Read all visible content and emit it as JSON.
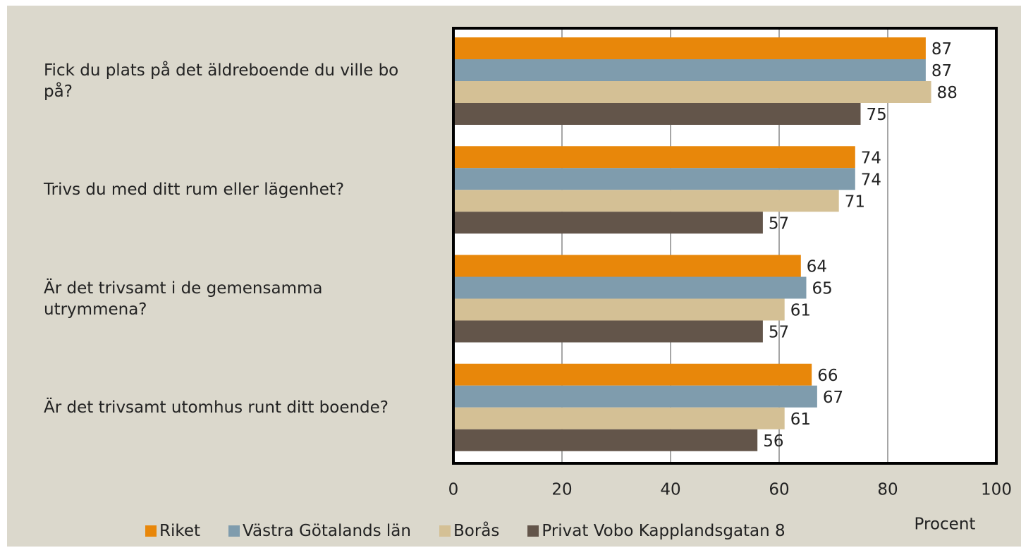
{
  "chart_data": {
    "type": "barh",
    "categories": [
      "Fick du plats på det äldreboende du ville bo på?",
      "Trivs du med ditt rum eller lägenhet?",
      "Är det trivsamt i de gemensamma utrymmena?",
      "Är det trivsamt utomhus runt ditt boende?"
    ],
    "series": [
      {
        "name": "Riket",
        "color": "#e8870a",
        "values": [
          87,
          74,
          64,
          66
        ]
      },
      {
        "name": "Västra Götalands län",
        "color": "#7f9cad",
        "values": [
          87,
          74,
          65,
          67
        ]
      },
      {
        "name": "Borås",
        "color": "#d4c095",
        "values": [
          88,
          71,
          61,
          61
        ]
      },
      {
        "name": "Privat Vobo Kapplandsgatan 8",
        "color": "#63554a",
        "values": [
          75,
          57,
          57,
          56
        ]
      }
    ],
    "xlabel": "Procent",
    "xlim": [
      0,
      100
    ],
    "xticks": [
      0,
      20,
      40,
      60,
      80,
      100
    ],
    "grid": true
  }
}
